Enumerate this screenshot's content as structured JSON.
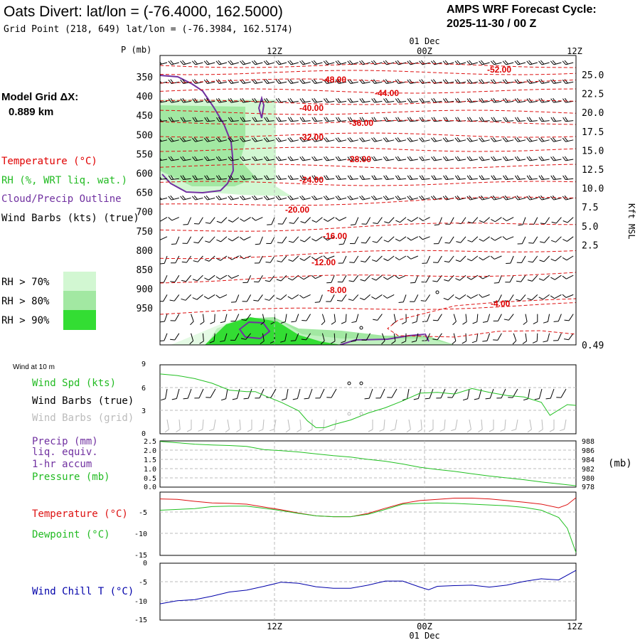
{
  "header": {
    "title": "Oats Divert:  lat/lon = (-76.4000, 162.5000)",
    "grid_point": "Grid Point (218, 649) lat/lon = (-76.3984, 162.5174)",
    "cycle_line1": "AMPS WRF Forecast Cycle:",
    "cycle_line2": "2025-11-30 / 00  Z"
  },
  "model_grid": {
    "label": "Model Grid ΔX:",
    "value": "0.889 km"
  },
  "legend": {
    "temperature": "Temperature (°C)",
    "rh": "RH (%, WRT liq. wat.)",
    "cloud": "Cloud/Precip Outline",
    "wind": "Wind Barbs (kts) (true)",
    "rh70": "RH > 70%",
    "rh80": "RH > 80%",
    "rh90": "RH > 90%"
  },
  "colors": {
    "temperature": "#e00000",
    "cloud": "#7030a0",
    "rh70": "#d2f7d2",
    "rh80": "#a2e8a2",
    "rh90": "#33dd33",
    "green_line": "#22c022",
    "red_line": "#dd1111",
    "blue_line": "#0000aa",
    "grid_barb": "#bbbbbb"
  },
  "time_axis": {
    "top_date": "01 Dec",
    "bottom_date": "01 Dec",
    "ticks": [
      "12Z",
      "00Z",
      "12Z"
    ]
  },
  "chart_data": [
    {
      "type": "contour",
      "name": "cross-section",
      "ylabel": "P (mb)",
      "y2label": "Kft MSL",
      "pressure_ticks": [
        350,
        400,
        450,
        500,
        550,
        600,
        650,
        700,
        750,
        800,
        850,
        900,
        950
      ],
      "height_ticks": [
        "25.0",
        "22.5",
        "20.0",
        "17.5",
        "15.0",
        "12.5",
        "10.0",
        "7.5",
        "5.0",
        "2.5",
        "0.49"
      ],
      "temperature_labels": [
        "-52.00",
        "-48.00",
        "-44.00",
        "-40.00",
        "-36.00",
        "-32.00",
        "-28.00",
        "-24.00",
        "-20.00",
        "-16.00",
        "-12.00",
        "-8.00",
        "-4.00"
      ]
    },
    {
      "type": "line",
      "name": "wind",
      "panel_title": "Wind at 10 m",
      "labels": [
        "Wind Spd (kts)",
        "Wind Barbs (true)",
        "Wind Barbs (grid)"
      ],
      "y_ticks": [
        "9",
        "6",
        "3",
        "0"
      ],
      "ylim": [
        0,
        9
      ],
      "x": [
        0,
        2,
        4,
        6,
        8,
        10,
        11,
        12,
        14,
        16,
        17,
        18,
        19,
        20,
        22,
        24,
        26,
        28,
        30,
        32,
        34,
        36,
        38,
        40,
        42,
        44,
        45,
        47,
        48
      ],
      "series": [
        {
          "name": "Wind Spd (kts)",
          "values": [
            7.8,
            7.6,
            7.2,
            6.6,
            5.7,
            5.5,
            5.5,
            5.0,
            4.1,
            3.0,
            1.7,
            0.8,
            0.8,
            1.2,
            1.8,
            2.7,
            3.4,
            4.3,
            5.3,
            5.4,
            5.2,
            5.9,
            5.4,
            5.0,
            4.8,
            4.1,
            2.4,
            3.8,
            3.7
          ]
        }
      ]
    },
    {
      "type": "line",
      "name": "pressure",
      "labels": [
        "Precip (mm)",
        "liq. equiv.",
        "1-hr accum",
        "Pressure (mb)"
      ],
      "y_ticks": [
        "2.5",
        "2.0",
        "1.5",
        "1.0",
        "0.5",
        "0.0"
      ],
      "y2_ticks": [
        "988",
        "986",
        "984",
        "982",
        "980",
        "978"
      ],
      "y2_unit": "(mb)",
      "ylim": [
        978,
        988
      ],
      "x": [
        0,
        2,
        4,
        6,
        8,
        10,
        12,
        14,
        16,
        18,
        20,
        22,
        24,
        26,
        28,
        30,
        32,
        34,
        36,
        38,
        40,
        42,
        44,
        46,
        48
      ],
      "series": [
        {
          "name": "Pressure (mb)",
          "values": [
            987.9,
            987.6,
            987.3,
            987.1,
            987.0,
            986.8,
            986.1,
            985.9,
            985.6,
            985.2,
            984.8,
            984.5,
            984.0,
            983.6,
            983.0,
            982.3,
            981.8,
            981.4,
            980.9,
            980.4,
            980.0,
            979.6,
            979.1,
            978.7,
            978.3
          ]
        }
      ]
    },
    {
      "type": "line",
      "name": "temperature",
      "labels": [
        "Temperature (°C)",
        "Dewpoint (°C)"
      ],
      "y_ticks": [
        "-5",
        "-10",
        "-15"
      ],
      "ylim": [
        -16.2,
        -0.5
      ],
      "x": [
        0,
        2,
        4,
        6,
        8,
        10,
        12,
        14,
        16,
        18,
        20,
        22,
        24,
        26,
        28,
        30,
        32,
        34,
        36,
        38,
        40,
        42,
        44,
        46,
        47,
        48
      ],
      "series": [
        {
          "name": "Temperature (°C)",
          "values": [
            -2.2,
            -2.3,
            -2.8,
            -3.2,
            -3.3,
            -3.5,
            -4.2,
            -4.9,
            -5.7,
            -6.4,
            -6.6,
            -6.6,
            -5.8,
            -4.5,
            -3.3,
            -2.6,
            -2.3,
            -2.0,
            -2.0,
            -2.2,
            -2.6,
            -3.0,
            -3.5,
            -4.4,
            -3.6,
            -1.9
          ]
        },
        {
          "name": "Dewpoint (°C)",
          "values": [
            -5.0,
            -4.8,
            -4.6,
            -4.1,
            -4.0,
            -4.0,
            -4.5,
            -5.1,
            -5.8,
            -6.4,
            -6.6,
            -6.6,
            -6.0,
            -4.8,
            -3.5,
            -3.3,
            -3.2,
            -3.3,
            -3.5,
            -3.7,
            -3.9,
            -4.3,
            -5.0,
            -6.8,
            -9.5,
            -15.5
          ]
        }
      ]
    },
    {
      "type": "line",
      "name": "windchill",
      "labels": [
        "Wind Chill T (°C)"
      ],
      "y_ticks": [
        "0",
        "-5",
        "-10",
        "-15"
      ],
      "ylim": [
        -15,
        0
      ],
      "x": [
        0,
        2,
        4,
        6,
        8,
        10,
        12,
        14,
        16,
        18,
        20,
        22,
        24,
        26,
        28,
        30,
        31,
        32,
        34,
        36,
        38,
        40,
        42,
        44,
        46,
        48
      ],
      "series": [
        {
          "name": "Wind Chill T (°C)",
          "values": [
            -10.7,
            -9.9,
            -9.6,
            -8.7,
            -7.6,
            -7.1,
            -6.1,
            -5.0,
            -5.3,
            -6.2,
            -6.6,
            -6.6,
            -5.8,
            -4.7,
            -4.7,
            -6.3,
            -7.0,
            -6.1,
            -5.9,
            -5.8,
            -6.3,
            -5.8,
            -4.8,
            -4.1,
            -4.4,
            -1.9
          ]
        }
      ]
    }
  ]
}
